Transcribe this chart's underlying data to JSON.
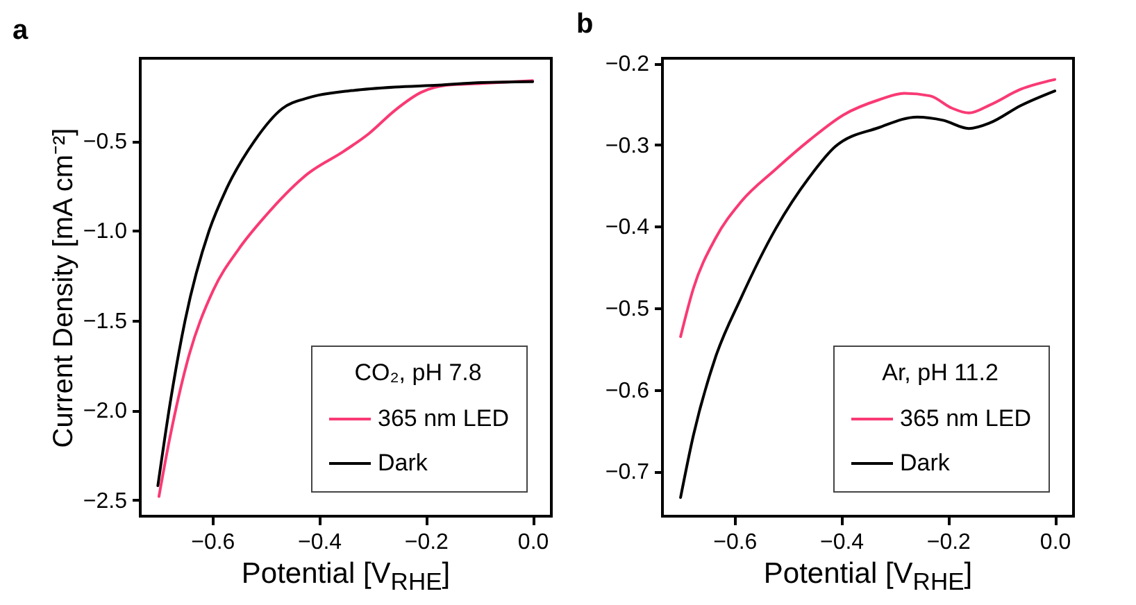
{
  "chart_data": [
    {
      "type": "line",
      "title": "a",
      "xlabel": "Potential [V$_{RHE}$]",
      "ylabel": "Current Density [mA cm⁻²]",
      "legend_title": "CO₂, pH 7.8",
      "legend": "bottom right",
      "grid": false,
      "xlim": [
        -0.735,
        0.035
      ],
      "ylim": [
        -2.59,
        -0.04
      ],
      "xticks": [
        {
          "value": -0.6,
          "label": "−0.6"
        },
        {
          "value": -0.4,
          "label": "−0.4"
        },
        {
          "value": -0.2,
          "label": "−0.2"
        },
        {
          "value": 0,
          "label": "0.0"
        }
      ],
      "yticks": [
        {
          "value": -0.5,
          "label": "−0.5"
        },
        {
          "value": -1.0,
          "label": "−1.0"
        },
        {
          "value": -1.5,
          "label": "−1.5"
        },
        {
          "value": -2.0,
          "label": "−2.0"
        },
        {
          "value": -2.5,
          "label": "−2.5"
        }
      ],
      "series": [
        {
          "name": "365 nm LED",
          "color": "#f93a74",
          "x": [
            -0.7,
            -0.68,
            -0.647,
            -0.598,
            -0.55,
            -0.501,
            -0.42,
            -0.355,
            -0.307,
            -0.258,
            -0.209,
            -0.161,
            -0.096,
            0
          ],
          "values": [
            -2.48,
            -2.16,
            -1.73,
            -1.33,
            -1.1,
            -0.92,
            -0.68,
            -0.56,
            -0.46,
            -0.33,
            -0.23,
            -0.19,
            -0.18,
            -0.165
          ]
        },
        {
          "name": "Dark",
          "color": "#000000",
          "x": [
            -0.702,
            -0.679,
            -0.651,
            -0.606,
            -0.574,
            -0.521,
            -0.469,
            -0.42,
            -0.339,
            -0.258,
            -0.177,
            -0.096,
            0
          ],
          "values": [
            -2.42,
            -1.96,
            -1.5,
            -1.0,
            -0.77,
            -0.5,
            -0.32,
            -0.26,
            -0.22,
            -0.2,
            -0.19,
            -0.175,
            -0.17
          ]
        }
      ]
    },
    {
      "type": "line",
      "title": "b",
      "xlabel": "Potential [V$_{RHE}$]",
      "legend_title": "Ar, pH 11.2",
      "legend": "bottom right",
      "grid": false,
      "xlim": [
        -0.735,
        0.035
      ],
      "ylim": [
        -0.755,
        -0.194
      ],
      "xticks": [
        {
          "value": -0.6,
          "label": "−0.6"
        },
        {
          "value": -0.4,
          "label": "−0.4"
        },
        {
          "value": -0.2,
          "label": "−0.2"
        },
        {
          "value": 0,
          "label": "0.0"
        }
      ],
      "yticks": [
        {
          "value": -0.2,
          "label": "−0.2"
        },
        {
          "value": -0.3,
          "label": "−0.3"
        },
        {
          "value": -0.4,
          "label": "−0.4"
        },
        {
          "value": -0.5,
          "label": "−0.5"
        },
        {
          "value": -0.6,
          "label": "−0.6"
        },
        {
          "value": -0.7,
          "label": "−0.7"
        }
      ],
      "series": [
        {
          "name": "365 nm LED",
          "color": "#f93a74",
          "x": [
            -0.701,
            -0.677,
            -0.636,
            -0.588,
            -0.523,
            -0.459,
            -0.395,
            -0.33,
            -0.282,
            -0.234,
            -0.193,
            -0.161,
            -0.121,
            -0.064,
            0
          ],
          "values": [
            -0.535,
            -0.476,
            -0.415,
            -0.37,
            -0.33,
            -0.294,
            -0.263,
            -0.245,
            -0.237,
            -0.24,
            -0.255,
            -0.261,
            -0.251,
            -0.232,
            -0.22
          ]
        },
        {
          "name": "Dark",
          "color": "#000000",
          "x": [
            -0.701,
            -0.677,
            -0.636,
            -0.588,
            -0.523,
            -0.459,
            -0.411,
            -0.33,
            -0.258,
            -0.209,
            -0.161,
            -0.121,
            -0.064,
            0
          ],
          "values": [
            -0.732,
            -0.656,
            -0.561,
            -0.488,
            -0.403,
            -0.339,
            -0.302,
            -0.279,
            -0.266,
            -0.27,
            -0.28,
            -0.273,
            -0.252,
            -0.234
          ]
        }
      ]
    }
  ]
}
